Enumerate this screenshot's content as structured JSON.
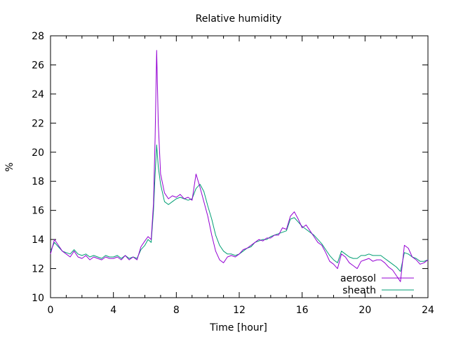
{
  "chart_data": {
    "type": "line",
    "title": "Relative humidity",
    "xlabel": "Time [hour]",
    "ylabel": "%",
    "xlim": [
      0,
      24
    ],
    "ylim": [
      10,
      28
    ],
    "xticks": [
      0,
      4,
      8,
      12,
      16,
      20,
      24
    ],
    "yticks": [
      10,
      12,
      14,
      16,
      18,
      20,
      22,
      24,
      26,
      28
    ],
    "grid": false,
    "legend_position": "bottom-right",
    "series": [
      {
        "name": "aerosol",
        "color": "#9400d3",
        "x": [
          0,
          0.25,
          0.5,
          0.75,
          1,
          1.25,
          1.5,
          1.75,
          2,
          2.25,
          2.5,
          2.75,
          3,
          3.25,
          3.5,
          3.75,
          4,
          4.25,
          4.5,
          4.75,
          5,
          5.25,
          5.5,
          5.75,
          6,
          6.2,
          6.4,
          6.55,
          6.65,
          6.75,
          6.85,
          7,
          7.25,
          7.5,
          7.75,
          8,
          8.25,
          8.5,
          8.75,
          9,
          9.25,
          9.5,
          9.75,
          10,
          10.25,
          10.5,
          10.75,
          11,
          11.25,
          11.5,
          11.75,
          12,
          12.25,
          12.5,
          12.75,
          13,
          13.25,
          13.5,
          13.75,
          14,
          14.25,
          14.5,
          14.75,
          15,
          15.25,
          15.5,
          15.75,
          16,
          16.25,
          16.5,
          16.75,
          17,
          17.25,
          17.5,
          17.75,
          18,
          18.25,
          18.5,
          18.75,
          19,
          19.25,
          19.5,
          19.75,
          20,
          20.25,
          20.5,
          20.75,
          21,
          21.25,
          21.5,
          21.75,
          22,
          22.25,
          22.5,
          22.75,
          23,
          23.25,
          23.5,
          23.75,
          24
        ],
        "y": [
          13.0,
          14.0,
          13.6,
          13.2,
          13.0,
          12.8,
          13.2,
          12.8,
          12.7,
          12.9,
          12.6,
          12.8,
          12.7,
          12.6,
          12.8,
          12.7,
          12.7,
          12.8,
          12.6,
          12.9,
          12.6,
          12.8,
          12.6,
          13.5,
          13.9,
          14.2,
          14.0,
          16.5,
          21.0,
          27.0,
          22.0,
          18.5,
          17.2,
          16.8,
          17.0,
          16.9,
          17.1,
          16.8,
          16.9,
          16.7,
          18.5,
          17.6,
          16.6,
          15.6,
          14.3,
          13.2,
          12.6,
          12.4,
          12.8,
          12.9,
          12.8,
          13.0,
          13.3,
          13.4,
          13.6,
          13.8,
          14.0,
          13.9,
          14.1,
          14.1,
          14.3,
          14.3,
          14.8,
          14.7,
          15.6,
          15.9,
          15.4,
          14.8,
          15.0,
          14.6,
          14.2,
          13.8,
          13.6,
          13.1,
          12.5,
          12.3,
          12.0,
          13.0,
          12.8,
          12.4,
          12.2,
          12.0,
          12.5,
          12.6,
          12.7,
          12.5,
          12.6,
          12.6,
          12.4,
          12.1,
          11.9,
          11.5,
          11.1,
          13.6,
          13.4,
          12.8,
          12.6,
          12.3,
          12.4,
          12.6
        ]
      },
      {
        "name": "sheath",
        "color": "#009e73",
        "x": [
          0,
          0.25,
          0.5,
          0.75,
          1,
          1.25,
          1.5,
          1.75,
          2,
          2.25,
          2.5,
          2.75,
          3,
          3.25,
          3.5,
          3.75,
          4,
          4.25,
          4.5,
          4.75,
          5,
          5.25,
          5.5,
          5.75,
          6,
          6.2,
          6.4,
          6.55,
          6.65,
          6.75,
          6.85,
          7,
          7.25,
          7.5,
          7.75,
          8,
          8.25,
          8.5,
          8.75,
          9,
          9.25,
          9.5,
          9.75,
          10,
          10.25,
          10.5,
          10.75,
          11,
          11.25,
          11.5,
          11.75,
          12,
          12.25,
          12.5,
          12.75,
          13,
          13.25,
          13.5,
          13.75,
          14,
          14.25,
          14.5,
          14.75,
          15,
          15.25,
          15.5,
          15.75,
          16,
          16.25,
          16.5,
          16.75,
          17,
          17.25,
          17.5,
          17.75,
          18,
          18.25,
          18.5,
          18.75,
          19,
          19.25,
          19.5,
          19.75,
          20,
          20.25,
          20.5,
          20.75,
          21,
          21.25,
          21.5,
          21.75,
          22,
          22.25,
          22.5,
          22.75,
          23,
          23.25,
          23.5,
          23.75,
          24
        ],
        "y": [
          13.2,
          13.8,
          13.5,
          13.2,
          13.1,
          13.0,
          13.3,
          13.0,
          12.9,
          13.0,
          12.8,
          12.9,
          12.8,
          12.7,
          12.9,
          12.8,
          12.8,
          12.9,
          12.7,
          12.9,
          12.7,
          12.8,
          12.7,
          13.3,
          13.6,
          14.0,
          13.8,
          16.0,
          18.5,
          20.5,
          19.0,
          17.8,
          16.6,
          16.4,
          16.6,
          16.8,
          16.9,
          16.8,
          16.7,
          16.8,
          17.5,
          17.8,
          17.3,
          16.3,
          15.4,
          14.3,
          13.6,
          13.2,
          13.0,
          13.0,
          12.9,
          13.0,
          13.2,
          13.4,
          13.5,
          13.8,
          13.9,
          14.0,
          14.0,
          14.2,
          14.3,
          14.4,
          14.5,
          14.6,
          15.4,
          15.5,
          15.2,
          14.9,
          14.7,
          14.5,
          14.3,
          14.0,
          13.7,
          13.3,
          12.9,
          12.6,
          12.4,
          13.2,
          13.0,
          12.8,
          12.7,
          12.7,
          12.9,
          12.9,
          13.0,
          12.9,
          12.9,
          12.9,
          12.7,
          12.5,
          12.3,
          12.1,
          11.8,
          13.1,
          13.0,
          12.8,
          12.7,
          12.5,
          12.5,
          12.6
        ]
      }
    ]
  }
}
